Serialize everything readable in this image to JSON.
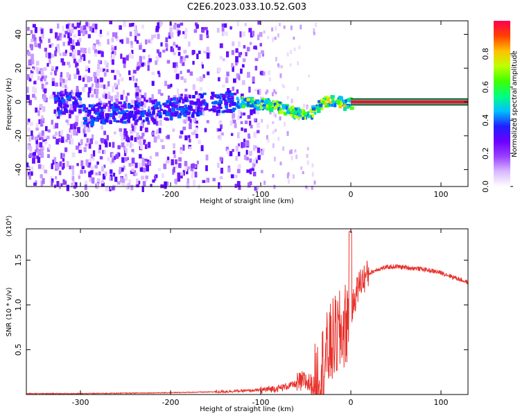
{
  "figure": {
    "title": "C2E6.2023.033.10.52.G03"
  },
  "chart_data": [
    {
      "type": "heatmap",
      "xlabel": "Height of straight line (km)",
      "ylabel": "Frequency (Hz)",
      "xlim": [
        -360,
        130
      ],
      "ylim": [
        -50,
        48
      ],
      "x_ticks": [
        -300,
        -200,
        -100,
        0,
        100
      ],
      "y_ticks": [
        -40,
        -20,
        0,
        20,
        40
      ],
      "colorbar": {
        "label": "Normalized spectral amplitude",
        "range": [
          0,
          1
        ],
        "ticks": [
          "0.0",
          "0.2",
          "0.4",
          "0.6",
          "0.8"
        ],
        "colors": [
          "#ffffff",
          "#d9b8ff",
          "#9a40ff",
          "#6a00ff",
          "#2020ff",
          "#00c0ff",
          "#00ff80",
          "#40ff00",
          "#c0ff00",
          "#ffc000",
          "#ff4000",
          "#ff0050"
        ]
      },
      "ridge": {
        "x": [
          -300,
          -210,
          -160,
          -140,
          -120,
          -100,
          -80,
          -60,
          -50,
          -40,
          -30,
          -20,
          -10,
          0,
          130
        ],
        "frequency": [
          -7,
          -4,
          0,
          1,
          1,
          0,
          -2,
          -6,
          -8,
          -3,
          1,
          2,
          0,
          0,
          0
        ]
      }
    },
    {
      "type": "line",
      "xlabel": "Height of straight line (km)",
      "ylabel": "SNR (10 * v/v)",
      "y_multiplier": "(x10⁴)",
      "xlim": [
        -360,
        130
      ],
      "ylim": [
        0,
        1.85
      ],
      "x_ticks": [
        -300,
        -200,
        -100,
        0,
        100
      ],
      "y_ticks": [
        0.5,
        1.0,
        1.5
      ],
      "y_tick_labels": [
        "0.5",
        "1.0",
        "1.5"
      ],
      "series": [
        {
          "color": "#e8302a",
          "x": [
            -360,
            -300,
            -250,
            -200,
            -150,
            -120,
            -100,
            -80,
            -60,
            -50,
            -40,
            -30,
            -20,
            -10,
            0,
            5,
            10,
            20,
            30,
            40,
            50,
            60,
            80,
            100,
            120,
            130
          ],
          "y": [
            0.01,
            0.01,
            0.015,
            0.02,
            0.03,
            0.04,
            0.05,
            0.07,
            0.12,
            0.15,
            0.08,
            0.35,
            0.6,
            0.7,
            0.9,
            1.1,
            1.25,
            1.35,
            1.4,
            1.42,
            1.43,
            1.42,
            1.4,
            1.36,
            1.29,
            1.25
          ]
        }
      ]
    }
  ]
}
